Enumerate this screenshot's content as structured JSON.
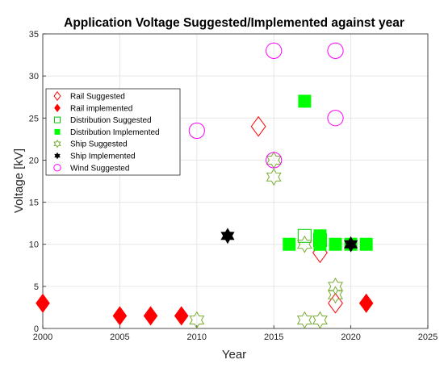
{
  "chart_data": {
    "type": "scatter",
    "title": "Application Voltage Suggested/Implemented against year",
    "xlabel": "Year",
    "ylabel": "Voltage [kV]",
    "xlim": [
      2000,
      2025
    ],
    "ylim": [
      0,
      35
    ],
    "xticks": [
      "2000",
      "2005",
      "2010",
      "2015",
      "2020",
      "2025"
    ],
    "yticks": [
      "0",
      "5",
      "10",
      "15",
      "20",
      "25",
      "30",
      "35"
    ],
    "grid": true,
    "legend_position": "upper-left",
    "series": [
      {
        "name": "Rail Suggested",
        "marker": "diamond-open",
        "color": "#ff0000",
        "points": [
          [
            2014,
            24
          ],
          [
            2018,
            9
          ],
          [
            2019,
            3
          ]
        ]
      },
      {
        "name": "Rail implemented",
        "marker": "diamond-filled",
        "color": "#ff0000",
        "points": [
          [
            2000,
            3
          ],
          [
            2005,
            1.5
          ],
          [
            2007,
            1.5
          ],
          [
            2009,
            1.5
          ],
          [
            2021,
            3
          ]
        ]
      },
      {
        "name": "Distribution Suggested",
        "marker": "square-open",
        "color": "#00cc00",
        "points": [
          [
            2017,
            11
          ],
          [
            2018,
            10.5
          ]
        ]
      },
      {
        "name": "Distribution Implemented",
        "marker": "square-filled",
        "color": "#00ff00",
        "points": [
          [
            2017,
            27
          ],
          [
            2016,
            10
          ],
          [
            2018,
            11
          ],
          [
            2018,
            10
          ],
          [
            2019,
            10
          ],
          [
            2020,
            10
          ],
          [
            2021,
            10
          ]
        ]
      },
      {
        "name": "Ship Suggested",
        "marker": "hexagram-open",
        "color": "#77ac30",
        "points": [
          [
            2010,
            1
          ],
          [
            2015,
            20
          ],
          [
            2015,
            18
          ],
          [
            2017,
            10
          ],
          [
            2017,
            1
          ],
          [
            2018,
            1
          ],
          [
            2019,
            5
          ],
          [
            2019,
            4
          ]
        ]
      },
      {
        "name": "Ship Implemented",
        "marker": "hexagram-filled",
        "color": "#000000",
        "points": [
          [
            2012,
            11
          ],
          [
            2020,
            10
          ]
        ]
      },
      {
        "name": "Wind Suggested",
        "marker": "circle-open",
        "color": "#ff00ff",
        "points": [
          [
            2010,
            23.5
          ],
          [
            2015,
            33
          ],
          [
            2015,
            20
          ],
          [
            2019,
            33
          ],
          [
            2019,
            25
          ]
        ]
      }
    ]
  }
}
